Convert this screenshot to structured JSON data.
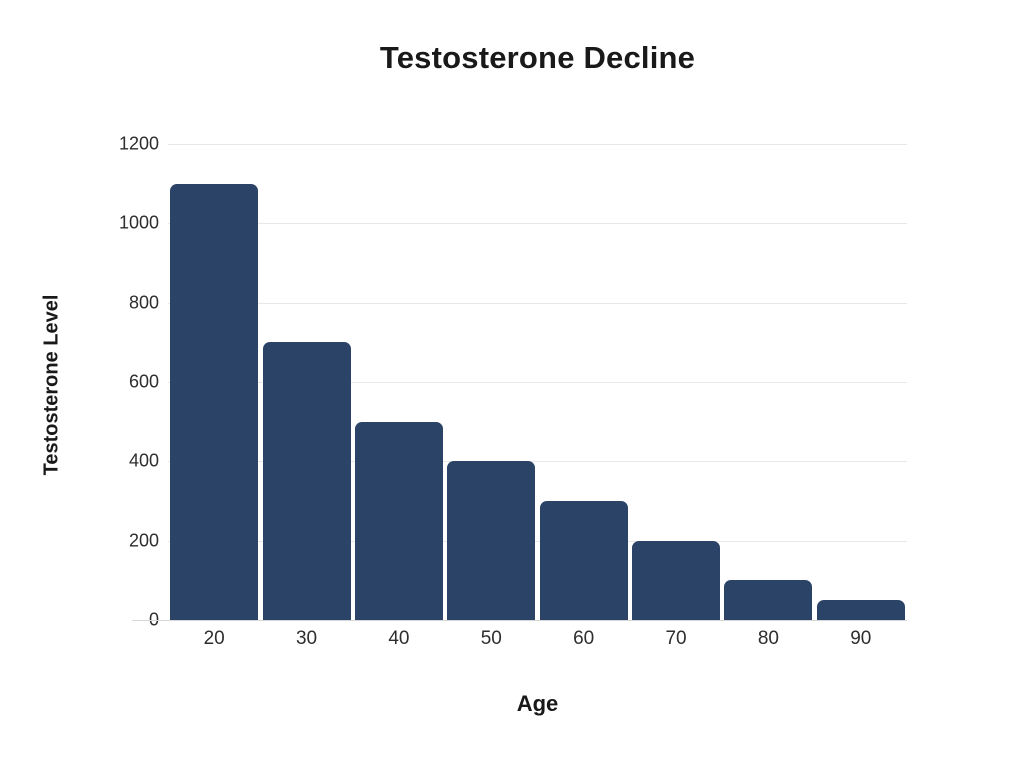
{
  "page": {
    "background": "#ffffff"
  },
  "chart_data": {
    "type": "bar",
    "title": "Testosterone Decline",
    "xlabel": "Age",
    "ylabel": "Testosterone Level",
    "categories": [
      "20",
      "30",
      "40",
      "50",
      "60",
      "70",
      "80",
      "90"
    ],
    "values": [
      1100,
      700,
      500,
      400,
      300,
      200,
      100,
      50
    ],
    "yticks": [
      0,
      200,
      400,
      600,
      800,
      1000,
      1200
    ],
    "ylim": [
      0,
      1200
    ],
    "grid": true,
    "legend": false,
    "bar_color": "#2b4366",
    "grid_color": "#e8e8e8",
    "baseline_color": "#d8d8d8",
    "tick_text_color": "#2e2e2e",
    "title_color": "#191919"
  }
}
